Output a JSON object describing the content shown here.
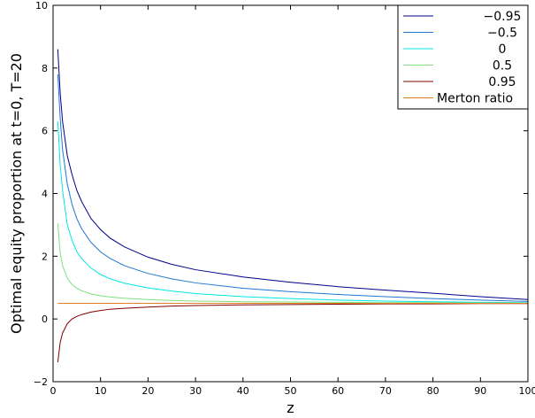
{
  "chart_data": {
    "type": "line",
    "title": "",
    "xlabel": "z",
    "ylabel": "Optimal equity proportion at t=0, T=20",
    "xlim": [
      0,
      100
    ],
    "ylim": [
      -2,
      10
    ],
    "xticks": [
      "0",
      "10",
      "20",
      "30",
      "40",
      "50",
      "60",
      "70",
      "80",
      "90",
      "100"
    ],
    "yticks": [
      "−2",
      "0",
      "2",
      "4",
      "6",
      "8",
      "10"
    ],
    "grid": false,
    "legend_position": "top-right",
    "x": [
      1,
      1.5,
      2,
      3,
      4,
      5,
      6,
      8,
      10,
      12,
      15,
      20,
      25,
      30,
      40,
      50,
      60,
      70,
      80,
      90,
      100
    ],
    "series": [
      {
        "name": "−0.95",
        "color": "#00008b",
        "values": [
          8.6,
          7.2,
          6.3,
          5.2,
          4.6,
          4.1,
          3.75,
          3.2,
          2.85,
          2.58,
          2.3,
          1.97,
          1.74,
          1.57,
          1.34,
          1.17,
          1.03,
          0.92,
          0.82,
          0.71,
          0.62
        ]
      },
      {
        "name": "−0.5",
        "color": "#1f77d0",
        "values": [
          7.8,
          6.4,
          5.4,
          4.3,
          3.65,
          3.2,
          2.88,
          2.44,
          2.14,
          1.93,
          1.7,
          1.45,
          1.28,
          1.15,
          0.98,
          0.87,
          0.78,
          0.71,
          0.65,
          0.6,
          0.56
        ]
      },
      {
        "name": "0",
        "color": "#00e5e5",
        "values": [
          6.3,
          4.9,
          4.1,
          3.0,
          2.5,
          2.15,
          1.93,
          1.62,
          1.42,
          1.28,
          1.14,
          0.99,
          0.89,
          0.81,
          0.71,
          0.65,
          0.6,
          0.57,
          0.55,
          0.53,
          0.52
        ]
      },
      {
        "name": "0.5",
        "color": "#7ee07e",
        "values": [
          3.05,
          2.1,
          1.7,
          1.3,
          1.1,
          0.98,
          0.9,
          0.8,
          0.74,
          0.7,
          0.66,
          0.62,
          0.59,
          0.57,
          0.55,
          0.54,
          0.53,
          0.52,
          0.52,
          0.51,
          0.51
        ]
      },
      {
        "name": "0.95",
        "color": "#800000",
        "values": [
          -1.38,
          -0.75,
          -0.45,
          -0.15,
          0.0,
          0.08,
          0.14,
          0.22,
          0.27,
          0.31,
          0.34,
          0.38,
          0.41,
          0.43,
          0.45,
          0.46,
          0.47,
          0.48,
          0.48,
          0.49,
          0.49
        ]
      },
      {
        "name": "Merton ratio",
        "color": "#e08020",
        "values": [
          0.5,
          0.5,
          0.5,
          0.5,
          0.5,
          0.5,
          0.5,
          0.5,
          0.5,
          0.5,
          0.5,
          0.5,
          0.5,
          0.5,
          0.5,
          0.5,
          0.5,
          0.5,
          0.5,
          0.5,
          0.5
        ]
      }
    ]
  }
}
